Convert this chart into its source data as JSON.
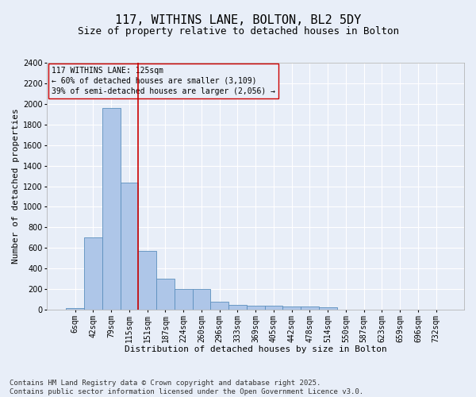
{
  "title_line1": "117, WITHINS LANE, BOLTON, BL2 5DY",
  "title_line2": "Size of property relative to detached houses in Bolton",
  "xlabel": "Distribution of detached houses by size in Bolton",
  "ylabel": "Number of detached properties",
  "categories": [
    "6sqm",
    "42sqm",
    "79sqm",
    "115sqm",
    "151sqm",
    "187sqm",
    "224sqm",
    "260sqm",
    "296sqm",
    "333sqm",
    "369sqm",
    "405sqm",
    "442sqm",
    "478sqm",
    "514sqm",
    "550sqm",
    "587sqm",
    "623sqm",
    "659sqm",
    "696sqm",
    "732sqm"
  ],
  "values": [
    15,
    700,
    1960,
    1235,
    575,
    305,
    200,
    200,
    80,
    48,
    38,
    38,
    28,
    28,
    22,
    0,
    0,
    0,
    0,
    0,
    0
  ],
  "bar_color": "#aec6e8",
  "bar_edge_color": "#5b8fbd",
  "vline_color": "#cc0000",
  "annotation_box_text": "117 WITHINS LANE: 125sqm\n← 60% of detached houses are smaller (3,109)\n39% of semi-detached houses are larger (2,056) →",
  "box_edge_color": "#cc0000",
  "background_color": "#e8eef8",
  "grid_color": "#ffffff",
  "ylim": [
    0,
    2400
  ],
  "yticks": [
    0,
    200,
    400,
    600,
    800,
    1000,
    1200,
    1400,
    1600,
    1800,
    2000,
    2200,
    2400
  ],
  "footnote": "Contains HM Land Registry data © Crown copyright and database right 2025.\nContains public sector information licensed under the Open Government Licence v3.0.",
  "title_fontsize": 11,
  "subtitle_fontsize": 9,
  "axis_label_fontsize": 8,
  "tick_fontsize": 7,
  "annotation_fontsize": 7,
  "footnote_fontsize": 6.5
}
